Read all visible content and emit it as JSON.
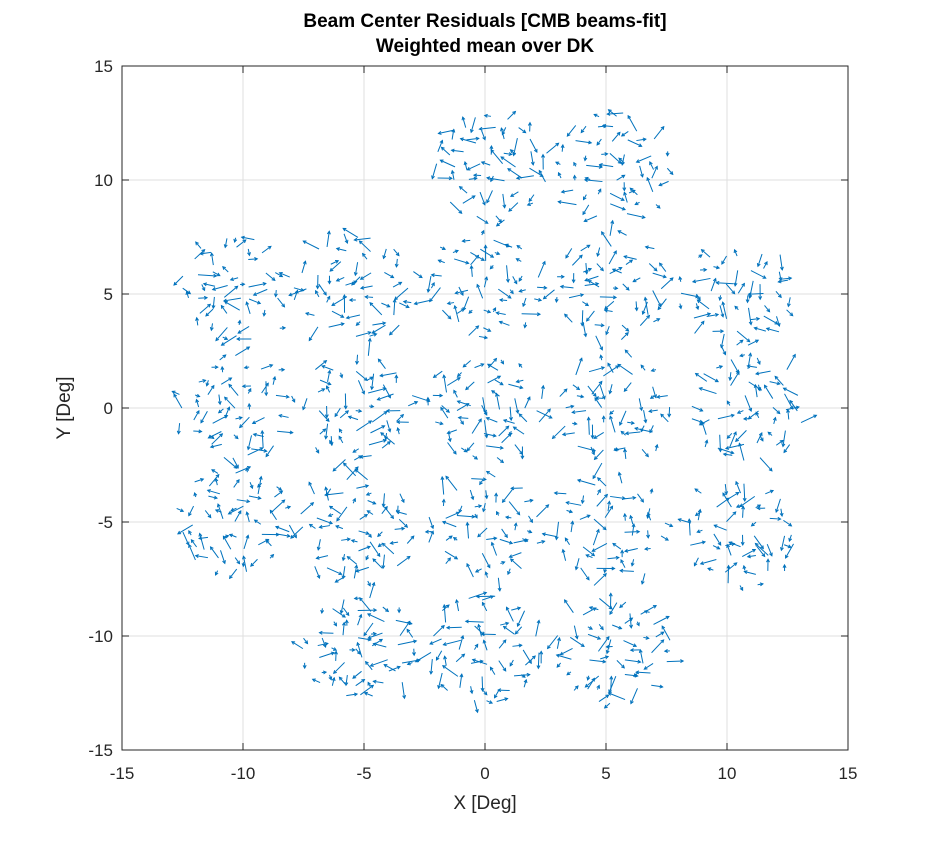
{
  "chart_data": {
    "type": "quiver",
    "title": [
      "Beam Center Residuals [CMB beams-fit]",
      "Weighted mean over DK"
    ],
    "xlabel": "X [Deg]",
    "ylabel": "Y [Deg]",
    "xlim": [
      -15,
      15
    ],
    "ylim": [
      -15,
      15
    ],
    "xticks": [
      "-15",
      "-10",
      "-5",
      "0",
      "5",
      "10",
      "15"
    ],
    "yticks": [
      "-15",
      "-10",
      "-5",
      "0",
      "5",
      "10",
      "15"
    ],
    "grid": true,
    "box": true,
    "series": [
      {
        "color": "#0072BD",
        "tiles": [
          {
            "cx": 0.3,
            "cy": 10.6
          },
          {
            "cx": 5.3,
            "cy": 10.6
          },
          {
            "cx": -10.2,
            "cy": 5.3
          },
          {
            "cx": -5.3,
            "cy": 5.3
          },
          {
            "cx": -0.1,
            "cy": 5.3
          },
          {
            "cx": 5.2,
            "cy": 5.3
          },
          {
            "cx": 10.4,
            "cy": 5.0
          },
          {
            "cx": -10.3,
            "cy": 0.0
          },
          {
            "cx": -5.3,
            "cy": 0.0
          },
          {
            "cx": 0.0,
            "cy": 0.0
          },
          {
            "cx": 5.4,
            "cy": -0.1
          },
          {
            "cx": 10.8,
            "cy": 0.0
          },
          {
            "cx": -10.4,
            "cy": -5.0
          },
          {
            "cx": -5.3,
            "cy": -5.3
          },
          {
            "cx": 0.0,
            "cy": -5.3
          },
          {
            "cx": 5.1,
            "cy": -5.5
          },
          {
            "cx": 10.6,
            "cy": -5.5
          },
          {
            "cx": -5.2,
            "cy": -10.5
          },
          {
            "cx": 0.0,
            "cy": -10.6
          },
          {
            "cx": 5.3,
            "cy": -10.6
          }
        ],
        "tile_half_width_deg": 2.2,
        "tile_grid": 9,
        "arrow_scale_deg": 0.6
      }
    ]
  }
}
